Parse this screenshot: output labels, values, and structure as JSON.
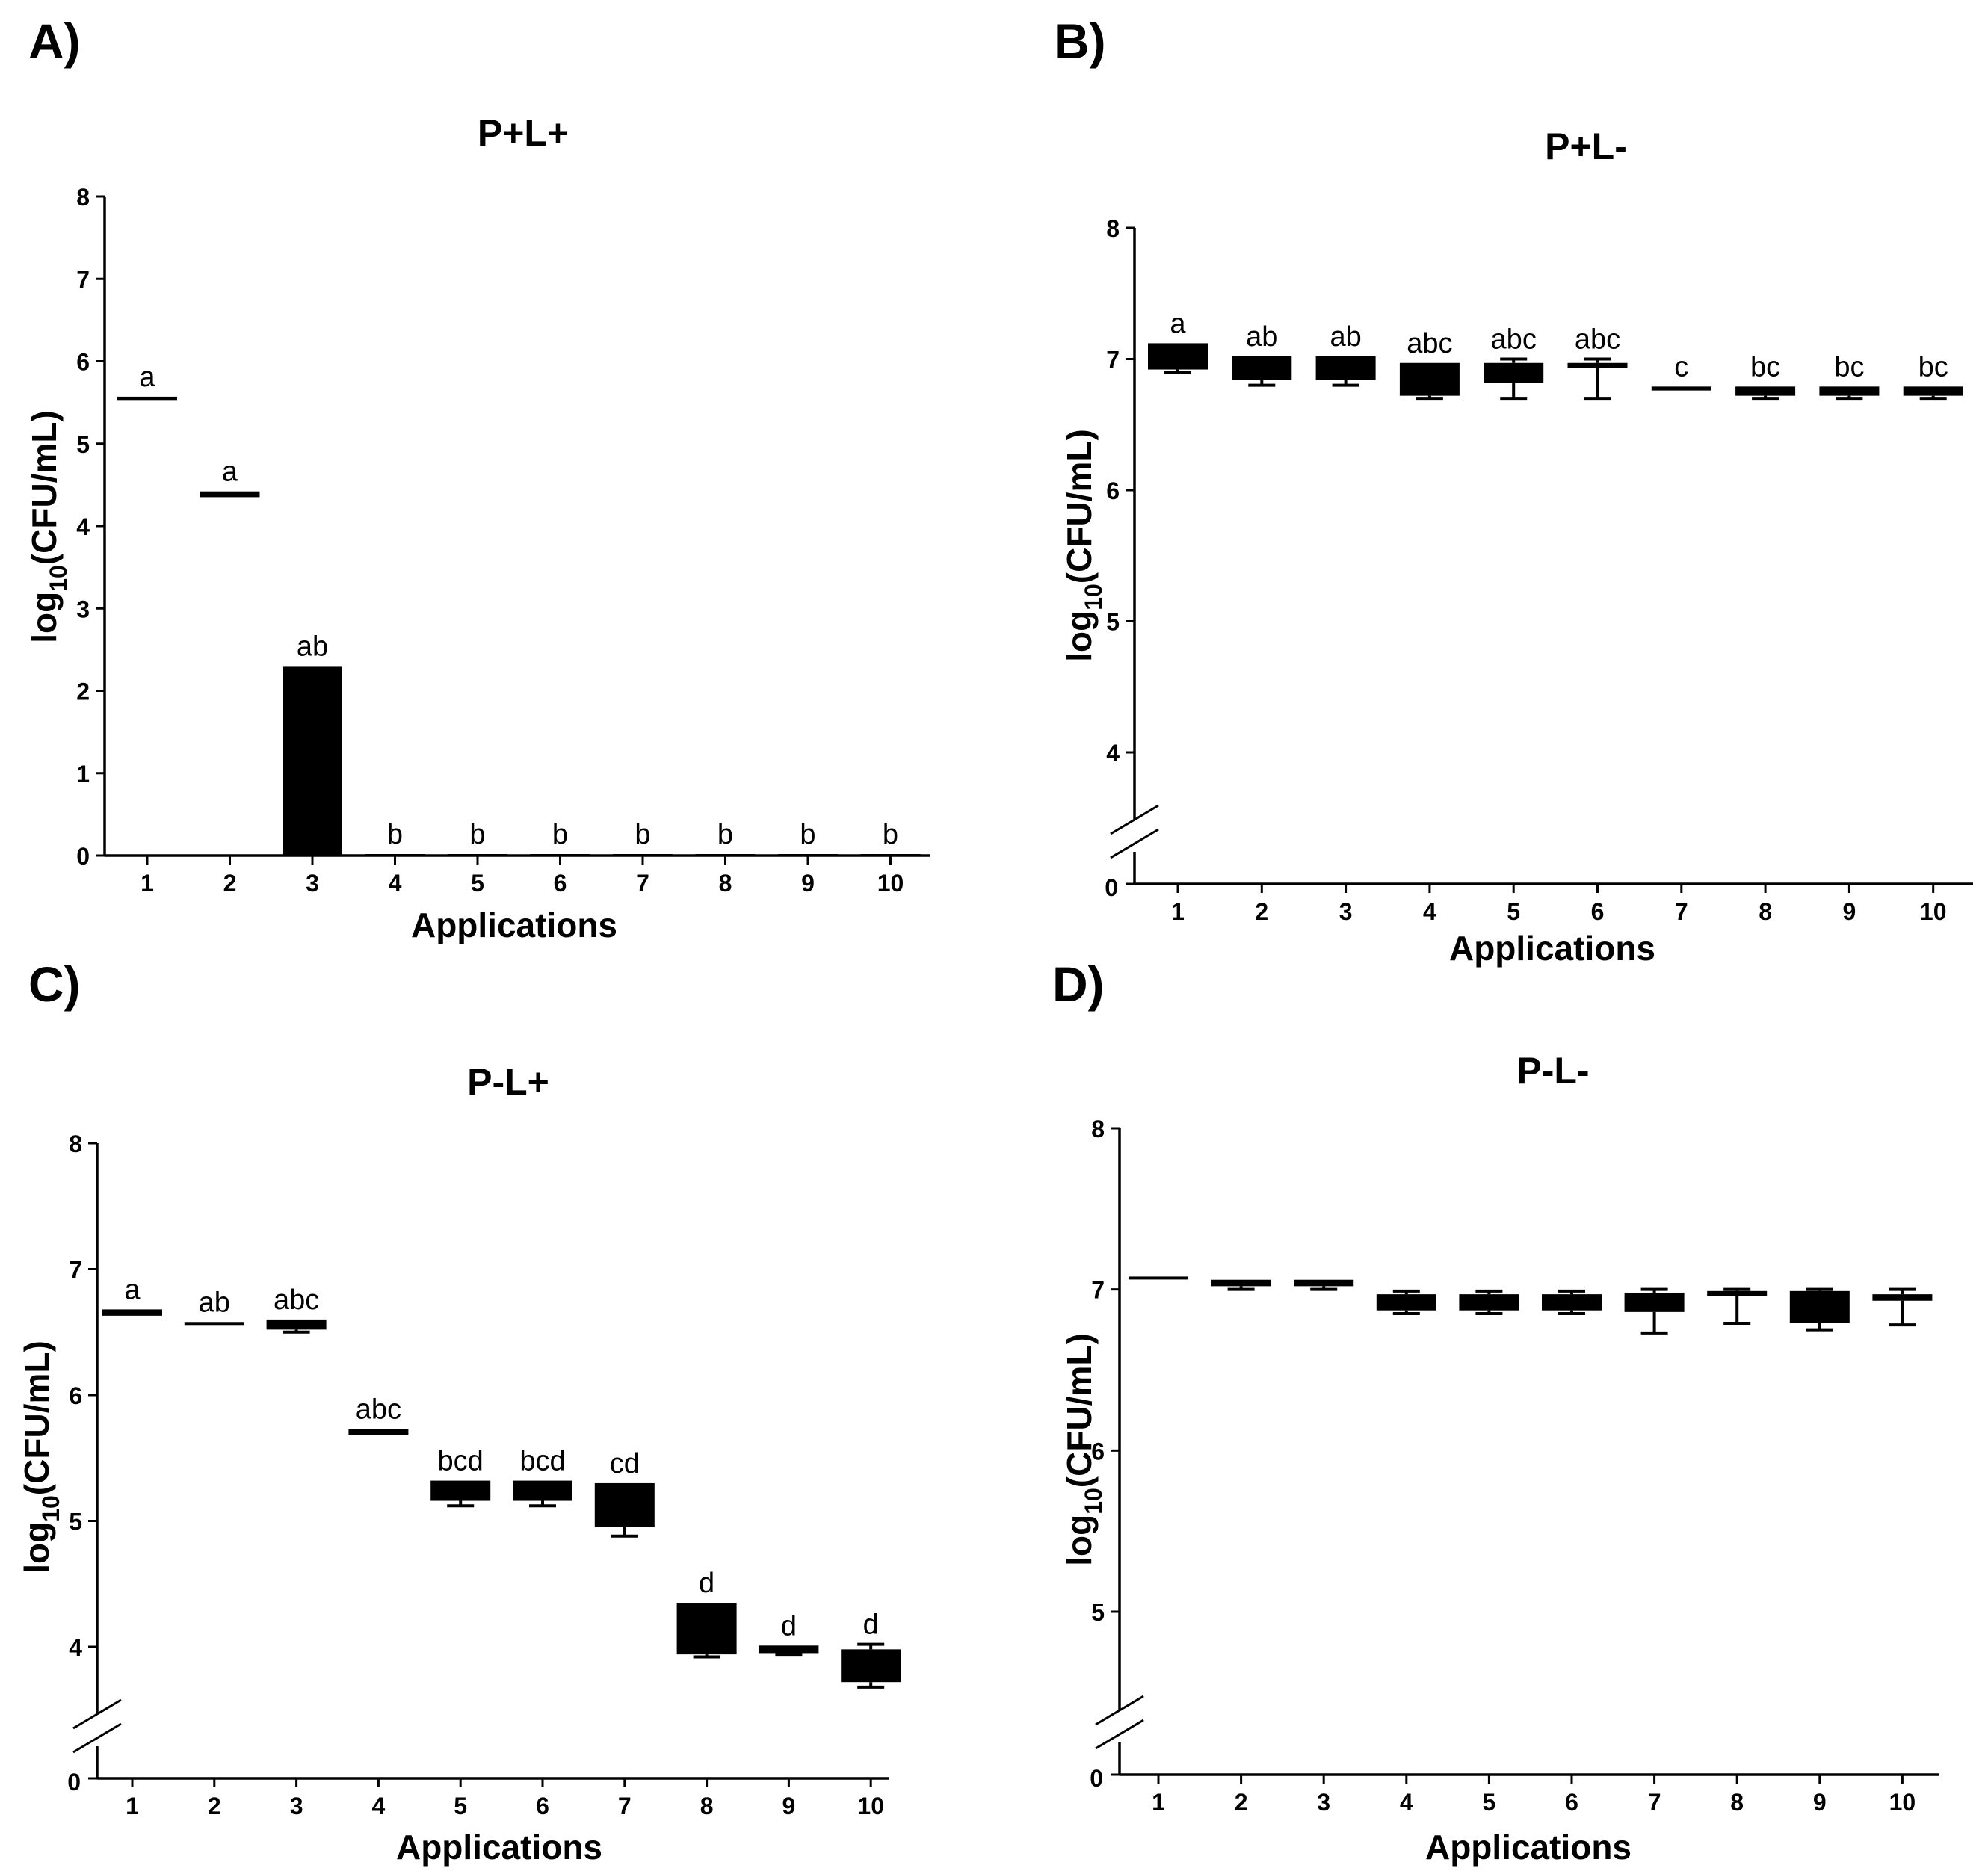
{
  "chart_data": [
    {
      "panel": "A)",
      "type": "bar",
      "title": "P+L+",
      "xlabel": "Applications",
      "ylabel_main": "log",
      "ylabel_sub": "10",
      "ylabel_rest": "(CFU/mL)",
      "categories": [
        "1",
        "2",
        "3",
        "4",
        "5",
        "6",
        "7",
        "8",
        "9",
        "10"
      ],
      "yticks": [
        0,
        1,
        2,
        3,
        4,
        5,
        6,
        7,
        8
      ],
      "ylim": [
        0,
        8
      ],
      "axis_break": false,
      "series": [
        {
          "name": "P+L+",
          "values": [
            {
              "q1": 5.53,
              "q3": 5.57,
              "min": 5.53,
              "max": 5.57,
              "bar": false
            },
            {
              "q1": 4.35,
              "q3": 4.42,
              "min": 4.35,
              "max": 4.42,
              "bar": false
            },
            {
              "bar": true,
              "value": 2.3
            },
            {
              "bar": true,
              "value": 0
            },
            {
              "bar": true,
              "value": 0
            },
            {
              "bar": true,
              "value": 0
            },
            {
              "bar": true,
              "value": 0
            },
            {
              "bar": true,
              "value": 0
            },
            {
              "bar": true,
              "value": 0
            },
            {
              "bar": true,
              "value": 0
            }
          ]
        }
      ],
      "letters": [
        "a",
        "a",
        "ab",
        "b",
        "b",
        "b",
        "b",
        "b",
        "b",
        "b"
      ]
    },
    {
      "panel": "B)",
      "type": "box",
      "title": "P+L-",
      "xlabel": "Applications",
      "ylabel_main": "log",
      "ylabel_sub": "10",
      "ylabel_rest": "(CFU/mL)",
      "categories": [
        "1",
        "2",
        "3",
        "4",
        "5",
        "6",
        "7",
        "8",
        "9",
        "10"
      ],
      "yticks": [
        4,
        5,
        6,
        7,
        8
      ],
      "zero_label": "0",
      "ylim": [
        3.5,
        8
      ],
      "axis_break": true,
      "series": [
        {
          "name": "P+L-",
          "values": [
            {
              "min": 6.9,
              "q1": 6.92,
              "q3": 7.12,
              "max": 7.12
            },
            {
              "min": 6.8,
              "q1": 6.84,
              "q3": 7.02,
              "max": 7.02
            },
            {
              "min": 6.8,
              "q1": 6.84,
              "q3": 7.02,
              "max": 7.02
            },
            {
              "min": 6.7,
              "q1": 6.72,
              "q3": 6.97,
              "max": 6.97
            },
            {
              "min": 6.7,
              "q1": 6.82,
              "q3": 6.97,
              "max": 7.0
            },
            {
              "min": 6.7,
              "q1": 6.93,
              "q3": 6.97,
              "max": 7.0
            },
            {
              "min": 6.76,
              "q1": 6.76,
              "q3": 6.79,
              "max": 6.79
            },
            {
              "min": 6.7,
              "q1": 6.72,
              "q3": 6.79,
              "max": 6.79
            },
            {
              "min": 6.7,
              "q1": 6.72,
              "q3": 6.79,
              "max": 6.79
            },
            {
              "min": 6.7,
              "q1": 6.72,
              "q3": 6.79,
              "max": 6.79
            }
          ]
        }
      ],
      "letters": [
        "a",
        "ab",
        "ab",
        "abc",
        "abc",
        "abc",
        "c",
        "bc",
        "bc",
        "bc"
      ]
    },
    {
      "panel": "C)",
      "type": "box",
      "title": "P-L+",
      "xlabel": "Applications",
      "ylabel_main": "log",
      "ylabel_sub": "10",
      "ylabel_rest": "(CFU/mL)",
      "categories": [
        "1",
        "2",
        "3",
        "4",
        "5",
        "6",
        "7",
        "8",
        "9",
        "10"
      ],
      "yticks": [
        4,
        5,
        6,
        7,
        8
      ],
      "zero_label": "0",
      "ylim": [
        3.5,
        8
      ],
      "axis_break": true,
      "series": [
        {
          "name": "P-L+",
          "values": [
            {
              "min": 6.63,
              "q1": 6.63,
              "q3": 6.68,
              "max": 6.68
            },
            {
              "min": 6.56,
              "q1": 6.56,
              "q3": 6.58,
              "max": 6.58
            },
            {
              "min": 6.5,
              "q1": 6.52,
              "q3": 6.6,
              "max": 6.6
            },
            {
              "min": 5.68,
              "q1": 5.68,
              "q3": 5.73,
              "max": 5.73
            },
            {
              "min": 5.12,
              "q1": 5.16,
              "q3": 5.32,
              "max": 5.32
            },
            {
              "min": 5.12,
              "q1": 5.16,
              "q3": 5.32,
              "max": 5.32
            },
            {
              "min": 4.88,
              "q1": 4.95,
              "q3": 5.3,
              "max": 5.3
            },
            {
              "min": 3.92,
              "q1": 3.94,
              "q3": 4.35,
              "max": 4.35
            },
            {
              "min": 3.94,
              "q1": 3.95,
              "q3": 4.01,
              "max": 4.01
            },
            {
              "min": 3.68,
              "q1": 3.72,
              "q3": 3.98,
              "max": 4.02
            }
          ]
        }
      ],
      "letters": [
        "a",
        "ab",
        "abc",
        "abc",
        "bcd",
        "bcd",
        "cd",
        "d",
        "d",
        "d"
      ]
    },
    {
      "panel": "D)",
      "type": "box",
      "title": "P-L-",
      "xlabel": "Applications",
      "ylabel_main": "log",
      "ylabel_sub": "10",
      "ylabel_rest": "(CFU/mL)",
      "categories": [
        "1",
        "2",
        "3",
        "4",
        "5",
        "6",
        "7",
        "8",
        "9",
        "10"
      ],
      "yticks": [
        5,
        6,
        7,
        8
      ],
      "zero_label": "0",
      "ylim": [
        4.5,
        8
      ],
      "axis_break": true,
      "series": [
        {
          "name": "P-L-",
          "values": [
            {
              "min": 7.08,
              "q1": 7.08,
              "q3": 7.08,
              "max": 7.08
            },
            {
              "min": 7.0,
              "q1": 7.02,
              "q3": 7.06,
              "max": 7.06
            },
            {
              "min": 7.0,
              "q1": 7.02,
              "q3": 7.06,
              "max": 7.06
            },
            {
              "min": 6.85,
              "q1": 6.87,
              "q3": 6.97,
              "max": 6.99
            },
            {
              "min": 6.85,
              "q1": 6.87,
              "q3": 6.97,
              "max": 6.99
            },
            {
              "min": 6.85,
              "q1": 6.87,
              "q3": 6.97,
              "max": 6.99
            },
            {
              "min": 6.73,
              "q1": 6.86,
              "q3": 6.98,
              "max": 7.0
            },
            {
              "min": 6.79,
              "q1": 6.96,
              "q3": 6.99,
              "max": 7.0
            },
            {
              "min": 6.75,
              "q1": 6.79,
              "q3": 6.99,
              "max": 7.0
            },
            {
              "min": 6.78,
              "q1": 6.93,
              "q3": 6.97,
              "max": 7.0
            }
          ]
        }
      ],
      "letters": [
        "",
        "",
        "",
        "",
        "",
        "",
        "",
        "",
        "",
        ""
      ]
    }
  ]
}
